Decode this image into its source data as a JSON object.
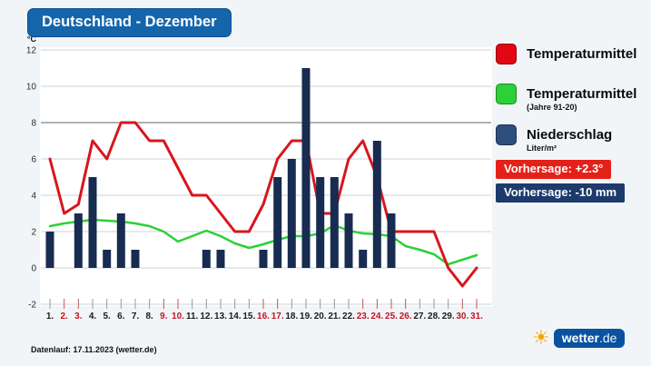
{
  "header": {
    "title": "Deutschland - Dezember"
  },
  "colors": {
    "title_bg": "#1565ab",
    "logo_bg": "#0a52a0",
    "sun": "#f7a600",
    "temp_line": "#d8161c",
    "climate_line": "#2bd136",
    "precip_bar": "#182b50",
    "weekend_label": "#c41425"
  },
  "legend": {
    "items": [
      {
        "label": "Temperaturmittel",
        "sublabel": "",
        "color": "#e30613"
      },
      {
        "label": "Temperaturmittel",
        "sublabel": "(Jahre 91-20)",
        "color": "#2bd136"
      },
      {
        "label": "Niederschlag",
        "sublabel": "Liter/m²",
        "color": "#2e4e7e"
      }
    ]
  },
  "badges": [
    {
      "text": "Vorhersage: +2.3°",
      "color": "#e32119"
    },
    {
      "text": "Vorhersage: -10 mm",
      "color": "#1c3a6b"
    }
  ],
  "footer": {
    "datarun": "Datenlauf: 17.11.2023 (wetter.de)"
  },
  "logo": {
    "brand": "wetter",
    "tld": ".de"
  },
  "chart_data": {
    "type": "combo",
    "title": "Deutschland - Dezember",
    "ylabel": "°C",
    "ylim": [
      -2,
      12
    ],
    "ytick_step": 2,
    "grid": true,
    "categories": [
      "1.",
      "2.",
      "3.",
      "4.",
      "5.",
      "6.",
      "7.",
      "8.",
      "9.",
      "10.",
      "11.",
      "12.",
      "13.",
      "14.",
      "15.",
      "16.",
      "17.",
      "18.",
      "19.",
      "20.",
      "21.",
      "22.",
      "23.",
      "24.",
      "25.",
      "26.",
      "27.",
      "28.",
      "29.",
      "30.",
      "31."
    ],
    "weekend_days": [
      2,
      3,
      9,
      10,
      16,
      17,
      23,
      24,
      25,
      26,
      30,
      31
    ],
    "series": [
      {
        "name": "Temperaturmittel",
        "type": "line",
        "color": "#d8161c",
        "values": [
          6,
          3,
          3.5,
          7,
          6,
          8,
          8,
          7,
          7,
          5.5,
          4,
          4,
          3,
          2,
          2,
          3.5,
          6,
          7,
          7,
          3,
          3,
          6,
          7,
          5,
          2,
          2,
          2,
          2,
          0,
          -1,
          0
        ]
      },
      {
        "name": "Temperaturmittel (Jahre 91-20)",
        "type": "line",
        "color": "#2bd136",
        "values": [
          2.3,
          2.45,
          2.55,
          2.65,
          2.6,
          2.55,
          2.45,
          2.3,
          2.0,
          1.45,
          1.75,
          2.05,
          1.75,
          1.35,
          1.1,
          1.3,
          1.55,
          1.75,
          1.75,
          1.9,
          2.35,
          2.05,
          1.9,
          1.85,
          1.75,
          1.2,
          1.0,
          0.75,
          0.2,
          0.45,
          0.7
        ]
      },
      {
        "name": "Niederschlag (Liter/m²)",
        "type": "bar",
        "color": "#182b50",
        "values": [
          2,
          0,
          3,
          5,
          1,
          3,
          1,
          0,
          0,
          0,
          0,
          1,
          1,
          0,
          0,
          1,
          5,
          6,
          11,
          5,
          5,
          3,
          1,
          7,
          3,
          0,
          0,
          0,
          0,
          0,
          0
        ]
      }
    ]
  }
}
